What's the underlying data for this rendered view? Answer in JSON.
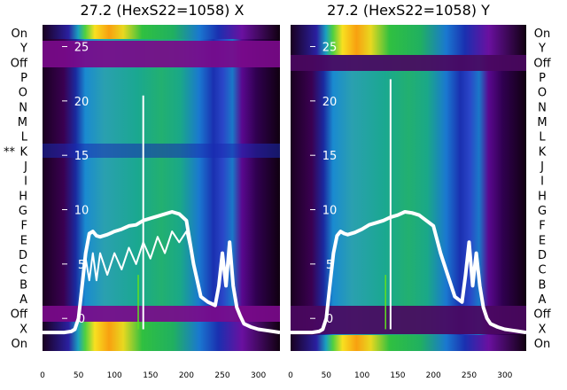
{
  "chart_data": [
    {
      "type": "heatmap",
      "title": "27.2 (HexS22=1058) X",
      "xlim": [
        0,
        330
      ],
      "ylim": [
        -3,
        27
      ],
      "xticks": [
        0,
        50,
        100,
        150,
        200,
        250,
        300
      ],
      "yticks": [
        0,
        5,
        10,
        15,
        20,
        25
      ],
      "row_labels": [
        "On",
        "Y",
        "Off",
        "P",
        "O",
        "N",
        "M",
        "L",
        "K",
        "J",
        "I",
        "H",
        "G",
        "F",
        "E",
        "D",
        "C",
        "B",
        "A",
        "Off",
        "X",
        "On"
      ],
      "marker_label": "**",
      "marker_row": "K",
      "series": [
        {
          "x": [
            0,
            10,
            20,
            30,
            40,
            45,
            50,
            55,
            60,
            65,
            70,
            75,
            80,
            90,
            100,
            110,
            120,
            130,
            140,
            150,
            160,
            170,
            180,
            190,
            200,
            210,
            220,
            230,
            240,
            245,
            250,
            255,
            260,
            265,
            270,
            275,
            280,
            290,
            300,
            310,
            320,
            330
          ],
          "y": [
            -1.3,
            -1.3,
            -1.3,
            -1.3,
            -1.2,
            -1,
            0,
            3,
            6,
            7.8,
            8,
            7.6,
            7.5,
            7.7,
            8,
            8.2,
            8.5,
            8.6,
            9,
            9.2,
            9.4,
            9.6,
            9.8,
            9.6,
            9,
            5,
            2,
            1.5,
            1.2,
            3,
            6,
            3,
            7,
            3,
            1,
            0.2,
            -0.5,
            -0.8,
            -1,
            -1.1,
            -1.2,
            -1.3
          ]
        },
        {
          "x": [
            50,
            55,
            60,
            65,
            70,
            75,
            80,
            90,
            100,
            110,
            120,
            130,
            140,
            150,
            160,
            170,
            180,
            190,
            200,
            210
          ],
          "y": [
            0,
            3.5,
            5.5,
            3.5,
            6,
            3.5,
            6,
            4,
            6,
            4.5,
            6.5,
            5,
            7,
            5.5,
            7.5,
            6,
            8,
            7,
            8,
            5
          ]
        }
      ]
    },
    {
      "type": "heatmap",
      "title": "27.2 (HexS22=1058) Y",
      "xlim": [
        0,
        330
      ],
      "ylim": [
        -3,
        27
      ],
      "xticks": [
        0,
        50,
        100,
        150,
        200,
        250,
        300
      ],
      "yticks": [
        0,
        5,
        10,
        15,
        20,
        25
      ],
      "row_labels": [
        "On",
        "Y",
        "Off",
        "P",
        "O",
        "N",
        "M",
        "L",
        "K",
        "J",
        "I",
        "H",
        "G",
        "F",
        "E",
        "D",
        "C",
        "B",
        "A",
        "Off",
        "X",
        "On"
      ],
      "series": [
        {
          "x": [
            0,
            10,
            20,
            30,
            40,
            45,
            50,
            55,
            60,
            65,
            70,
            75,
            80,
            90,
            100,
            110,
            120,
            130,
            140,
            150,
            160,
            170,
            180,
            190,
            200,
            210,
            220,
            230,
            240,
            245,
            250,
            255,
            260,
            265,
            270,
            275,
            280,
            290,
            300,
            310,
            320,
            330
          ],
          "y": [
            -1.3,
            -1.3,
            -1.3,
            -1.3,
            -1.2,
            -1,
            0,
            3,
            6,
            7.6,
            8,
            7.8,
            7.7,
            7.9,
            8.2,
            8.6,
            8.8,
            9,
            9.3,
            9.5,
            9.8,
            9.7,
            9.5,
            9,
            8.5,
            6,
            4,
            2,
            1.5,
            4,
            7,
            3,
            6,
            3,
            1,
            0,
            -0.5,
            -0.8,
            -1,
            -1.1,
            -1.2,
            -1.3
          ]
        }
      ]
    }
  ]
}
